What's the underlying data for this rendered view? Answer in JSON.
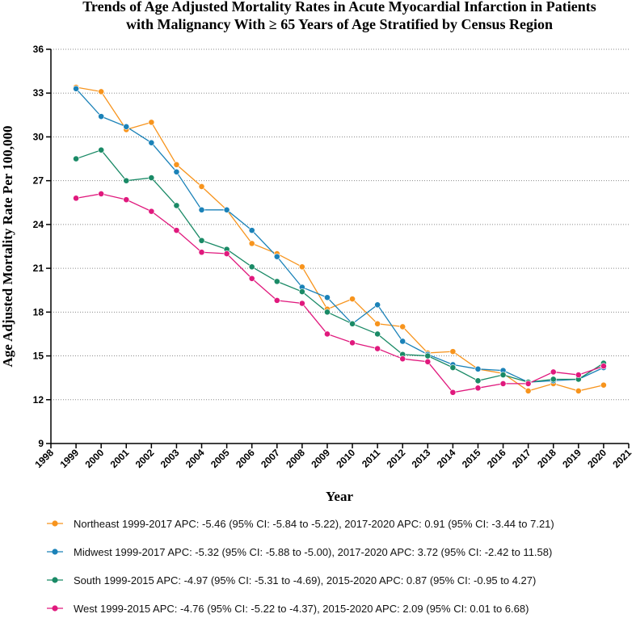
{
  "chart_data": {
    "type": "line",
    "title_lines": [
      "Trends of Age Adjusted Mortality Rates in Acute Myocardial Infarction in Patients",
      "with Malignancy With ≥ 65 Years of Age Stratified by Census Region"
    ],
    "xlabel": "Year",
    "ylabel": "Age Adjusted Mortality Rate Per 100,000",
    "xlim": [
      1998,
      2021
    ],
    "ylim": [
      9,
      36
    ],
    "x_ticks": [
      "1998",
      "1999",
      "2000",
      "2001",
      "2002",
      "2003",
      "2004",
      "2005",
      "2006",
      "2007",
      "2008",
      "2009",
      "2010",
      "2011",
      "2012",
      "2013",
      "2014",
      "2015",
      "2016",
      "2017",
      "2018",
      "2019",
      "2020",
      "2021"
    ],
    "y_ticks": [
      "9",
      "12",
      "15",
      "18",
      "21",
      "24",
      "27",
      "30",
      "33",
      "36"
    ],
    "grid": "horizontal dotted",
    "legend_position": "bottom",
    "x": [
      1999,
      2000,
      2001,
      2002,
      2003,
      2004,
      2005,
      2006,
      2007,
      2008,
      2009,
      2010,
      2011,
      2012,
      2013,
      2014,
      2015,
      2016,
      2017,
      2018,
      2019,
      2020
    ],
    "series": [
      {
        "name": "Northeast",
        "legend": "Northeast 1999-2017 APC: -5.46 (95% CI: -5.84 to -5.22), 2017-2020 APC: 0.91 (95% CI: -3.44 to 7.21)",
        "color": "#F7941D",
        "values": [
          33.4,
          33.1,
          30.5,
          31.0,
          28.1,
          26.6,
          25.0,
          22.7,
          22.0,
          21.1,
          18.2,
          18.9,
          17.2,
          17.0,
          15.2,
          15.3,
          14.1,
          13.8,
          12.6,
          13.1,
          12.6,
          13.0
        ]
      },
      {
        "name": "Midwest",
        "legend": "Midwest 1999-2017 APC: -5.32 (95% CI: -5.88 to -5.00), 2017-2020 APC: 3.72 (95% CI: -2.42 to 11.58)",
        "color": "#1B82B8",
        "values": [
          33.3,
          31.4,
          30.7,
          29.6,
          27.6,
          25.0,
          25.0,
          23.6,
          21.8,
          19.7,
          19.0,
          17.2,
          18.5,
          16.0,
          15.1,
          14.4,
          14.1,
          14.0,
          13.2,
          13.3,
          13.4,
          14.2
        ]
      },
      {
        "name": "South",
        "legend": "South 1999-2015 APC: -4.97 (95% CI: -5.31 to -4.69), 2015-2020 APC: 0.87 (95% CI: -0.95 to 4.27)",
        "color": "#1A8A66",
        "values": [
          28.5,
          29.1,
          27.0,
          27.2,
          25.3,
          22.9,
          22.3,
          21.1,
          20.1,
          19.4,
          18.0,
          17.2,
          16.5,
          15.1,
          15.0,
          14.2,
          13.3,
          13.7,
          13.2,
          13.4,
          13.4,
          14.5
        ]
      },
      {
        "name": "West",
        "legend": "West 1999-2015 APC: -4.76 (95% CI: -5.22 to -4.37), 2015-2020 APC: 2.09 (95% CI: 0.01 to 6.68)",
        "color": "#E0197D",
        "values": [
          25.8,
          26.1,
          25.7,
          24.9,
          23.6,
          22.1,
          22.0,
          20.3,
          18.8,
          18.6,
          16.5,
          15.9,
          15.5,
          14.8,
          14.6,
          12.5,
          12.8,
          13.1,
          13.1,
          13.9,
          13.7,
          14.3
        ]
      }
    ]
  }
}
